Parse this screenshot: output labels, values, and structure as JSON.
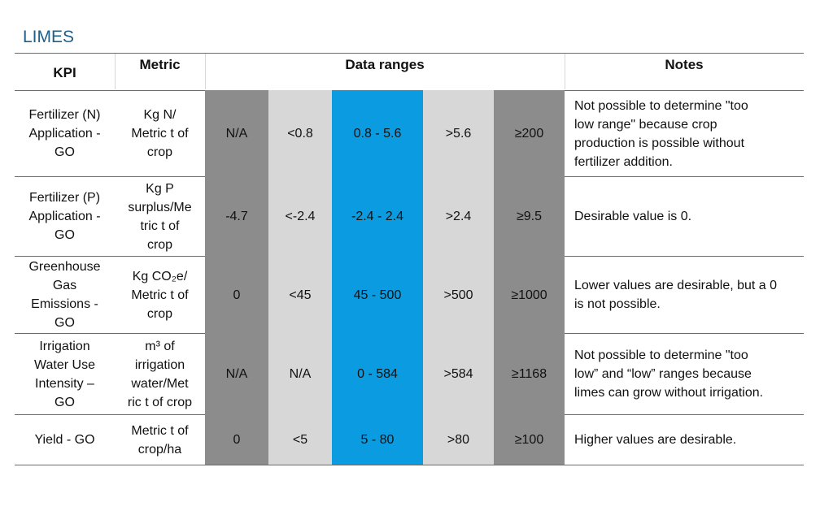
{
  "title": "LIMES",
  "headers": {
    "kpi": "KPI",
    "metric": "Metric",
    "ranges": "Data ranges",
    "notes": "Notes"
  },
  "colors": {
    "very_low": "#8c8c8c",
    "low": "#d7d7d7",
    "desirable": "#0b9be0",
    "high": "#d7d7d7",
    "very_high": "#8c8c8c",
    "title": "#1f5f86"
  },
  "rows": [
    {
      "kpi": [
        "Fertilizer (N)",
        "Application -",
        "GO"
      ],
      "metric": [
        "Kg N/",
        "Metric t of",
        "crop"
      ],
      "ranges": [
        "N/A",
        "<0.8",
        "0.8 - 5.6",
        ">5.6",
        "≥200"
      ],
      "notes": [
        "Not possible to determine \"too",
        "low range\" because crop",
        "production is possible without",
        "fertilizer addition."
      ]
    },
    {
      "kpi": [
        "Fertilizer (P)",
        "Application -",
        "GO"
      ],
      "metric": [
        "Kg P",
        "surplus/Me",
        "tric t of",
        "crop"
      ],
      "ranges": [
        "-4.7",
        "<-2.4",
        "-2.4 - 2.4",
        ">2.4",
        "≥9.5"
      ],
      "notes": [
        "Desirable value is 0."
      ]
    },
    {
      "kpi": [
        "Greenhouse",
        "Gas",
        "Emissions -",
        "GO"
      ],
      "metric": [
        "Kg CO₂e/",
        "Metric t of",
        "crop"
      ],
      "ranges": [
        "0",
        "<45",
        "45 - 500",
        ">500",
        "≥1000"
      ],
      "notes": [
        "Lower values are desirable, but a 0",
        "is not possible."
      ]
    },
    {
      "kpi": [
        "Irrigation",
        "Water Use",
        "Intensity –",
        "GO"
      ],
      "metric": [
        "m³ of",
        "irrigation",
        "water/Met",
        "ric t of crop"
      ],
      "ranges": [
        "N/A",
        "N/A",
        "0 - 584",
        ">584",
        "≥1168"
      ],
      "notes": [
        "Not possible to determine \"too",
        "low” and “low” ranges because",
        "limes can grow without irrigation."
      ]
    },
    {
      "kpi": [
        "Yield - GO"
      ],
      "metric": [
        "Metric t of",
        "crop/ha"
      ],
      "ranges": [
        "0",
        "<5",
        "5 - 80",
        ">80",
        "≥100"
      ],
      "notes": [
        "Higher values are desirable."
      ]
    }
  ]
}
